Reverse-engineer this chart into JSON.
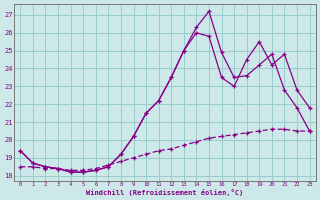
{
  "xlabel": "Windchill (Refroidissement éolien,°C)",
  "xlim_min": -0.5,
  "xlim_max": 23.5,
  "ylim_min": 17.7,
  "ylim_max": 27.6,
  "xticks": [
    0,
    1,
    2,
    3,
    4,
    5,
    6,
    7,
    8,
    9,
    10,
    11,
    12,
    13,
    14,
    15,
    16,
    17,
    18,
    19,
    20,
    21,
    22,
    23
  ],
  "yticks": [
    18,
    19,
    20,
    21,
    22,
    23,
    24,
    25,
    26,
    27
  ],
  "bg_color": "#cce8e8",
  "line_color": "#880088",
  "grid_color": "#99cccc",
  "line1_x": [
    0,
    1,
    2,
    3,
    4,
    5,
    6,
    7,
    8,
    9,
    10,
    11,
    12,
    13,
    14,
    15,
    16,
    17,
    18,
    19,
    20,
    21,
    22,
    23
  ],
  "line1_y": [
    19.4,
    18.7,
    18.5,
    18.4,
    18.2,
    18.2,
    18.3,
    18.5,
    19.2,
    20.2,
    21.5,
    22.2,
    23.5,
    25.0,
    26.3,
    27.2,
    24.9,
    23.5,
    23.6,
    24.2,
    24.8,
    22.8,
    21.8,
    20.5
  ],
  "line2_x": [
    0,
    1,
    2,
    3,
    4,
    5,
    6,
    7,
    8,
    9,
    10,
    11,
    12,
    13,
    14,
    15,
    16,
    17,
    18,
    19,
    20,
    21,
    22,
    23
  ],
  "line2_y": [
    19.4,
    18.7,
    18.5,
    18.4,
    18.2,
    18.2,
    18.3,
    18.5,
    19.2,
    20.2,
    21.5,
    22.2,
    23.5,
    25.0,
    26.0,
    25.8,
    23.5,
    23.0,
    24.5,
    25.5,
    24.2,
    24.8,
    22.8,
    21.8
  ],
  "line3_x": [
    0,
    1,
    2,
    3,
    4,
    5,
    6,
    7,
    8,
    9,
    10,
    11,
    12,
    13,
    14,
    15,
    16,
    17,
    18,
    19,
    20,
    21,
    22,
    23
  ],
  "line3_y": [
    18.5,
    18.5,
    18.4,
    18.4,
    18.3,
    18.3,
    18.4,
    18.6,
    18.8,
    19.0,
    19.2,
    19.4,
    19.5,
    19.7,
    19.9,
    20.1,
    20.2,
    20.3,
    20.4,
    20.5,
    20.6,
    20.6,
    20.5,
    20.5
  ]
}
